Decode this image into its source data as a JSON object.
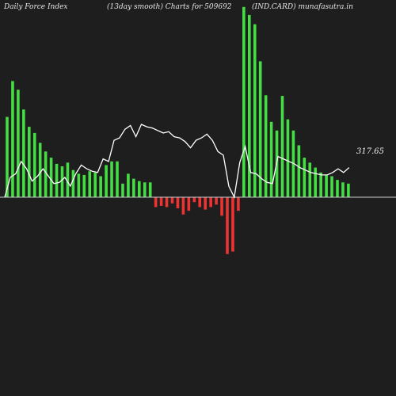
{
  "header": {
    "left": "Daily Force  Index",
    "middle": "(13day smooth) Charts for 509692",
    "right": "(IND.CARD) munafasutra.in"
  },
  "chart_data": {
    "type": "bar",
    "title": "",
    "xlabel": "",
    "ylabel": "",
    "ylim": [
      -98,
      250
    ],
    "zero_line": true,
    "grid": false,
    "colors": {
      "positive": "#44dd44",
      "negative": "#ee3333",
      "line": "#ffffff",
      "zero_line": "#cccccc",
      "background": "#1e1e1e"
    },
    "bars": [
      130,
      188,
      174,
      142,
      114,
      104,
      88,
      74,
      64,
      54,
      50,
      56,
      44,
      38,
      36,
      42,
      40,
      34,
      52,
      58,
      58,
      22,
      38,
      30,
      26,
      24,
      24,
      -16,
      -14,
      -16,
      -10,
      -18,
      -28,
      -22,
      -8,
      -16,
      -20,
      -16,
      -12,
      -30,
      -92,
      -88,
      -22,
      308,
      295,
      280,
      220,
      165,
      122,
      108,
      164,
      126,
      108,
      84,
      64,
      56,
      48,
      40,
      36,
      34,
      28,
      24,
      22
    ],
    "line_series": [
      0,
      32,
      38,
      58,
      46,
      26,
      34,
      46,
      34,
      22,
      24,
      32,
      18,
      38,
      52,
      46,
      42,
      40,
      62,
      58,
      92,
      96,
      110,
      116,
      98,
      118,
      114,
      112,
      108,
      104,
      106,
      98,
      96,
      90,
      80,
      92,
      96,
      102,
      92,
      74,
      68,
      18,
      0,
      56,
      82,
      40,
      38,
      30,
      24,
      22,
      66,
      62,
      58,
      54,
      48,
      44,
      40,
      38,
      36,
      36,
      40,
      46,
      40,
      48
    ],
    "last_value_label": "317.65"
  }
}
